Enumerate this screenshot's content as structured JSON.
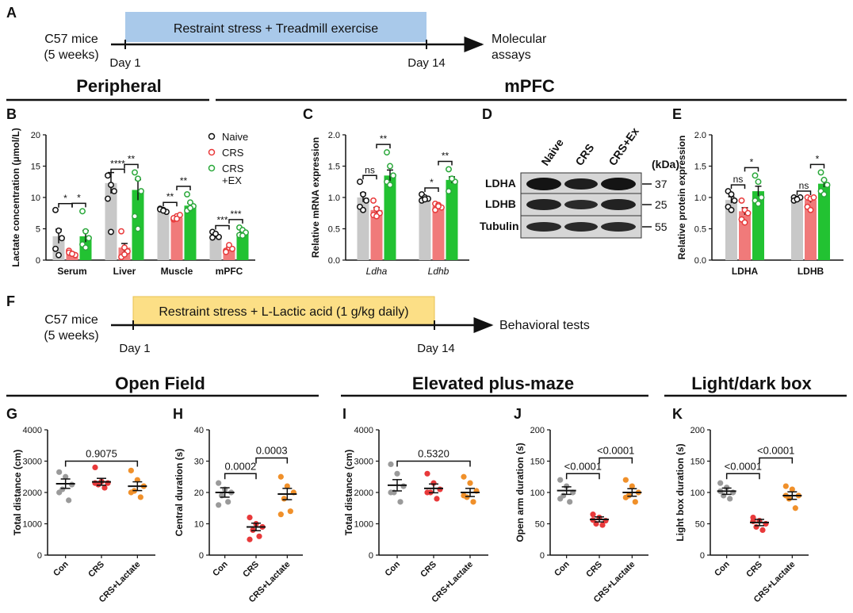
{
  "colors": {
    "grey": "#c8c8c8",
    "grey_pt": "#9a9a9a",
    "red": "#f07a7a",
    "red_pt": "#e8393a",
    "green": "#22c232",
    "green_pt": "#2aa83a",
    "orange": "#f0902a",
    "black": "#111111",
    "timeline_blue": "#a9c9ea",
    "timeline_yellow": "#fcdf86"
  },
  "panel_labels": {
    "A": "A",
    "B": "B",
    "C": "C",
    "D": "D",
    "E": "E",
    "F": "F",
    "G": "G",
    "H": "H",
    "I": "I",
    "J": "J",
    "K": "K"
  },
  "timeline_a": {
    "subject1": "C57 mice",
    "subject2": "(5 weeks)",
    "box": "Restraint stress + Treadmill exercise",
    "start": "Day 1",
    "end": "Day 14",
    "result1": "Molecular",
    "result2": "assays"
  },
  "timeline_f": {
    "subject1": "C57 mice",
    "subject2": "(5 weeks)",
    "box": "Restraint stress + L-Lactic acid (1 g/kg daily)",
    "start": "Day 1",
    "end": "Day 14",
    "result": "Behavioral tests"
  },
  "section_titles": {
    "peripheral": "Peripheral",
    "mpfc": "mPFC",
    "open_field": "Open Field",
    "epm": "Elevated plus-maze",
    "ldb": "Light/dark box"
  },
  "legend": {
    "naive": "Naive",
    "crs": "CRS",
    "crsex1": "CRS",
    "crsex2": "+EX"
  },
  "western": {
    "header": [
      "Naive",
      "CRS",
      "CRS+Ex"
    ],
    "kda": "(kDa)",
    "rows": [
      {
        "name": "LDHA",
        "size": "37"
      },
      {
        "name": "LDHB",
        "size": "25"
      },
      {
        "name": "Tubulin",
        "size": "55"
      }
    ]
  },
  "chart_data": [
    {
      "id": "B",
      "type": "bar",
      "ylabel": "Lactate concentration (μmol/L)",
      "ylim": [
        0,
        20
      ],
      "yticks": [
        "0",
        "5",
        "10",
        "15",
        "20"
      ],
      "categories": [
        "Serum",
        "Liver",
        "Muscle",
        "mPFC"
      ],
      "series": [
        {
          "name": "Naive",
          "values": [
            3.8,
            12.3,
            8.0,
            4.0
          ],
          "points": [
            [
              8,
              4.7,
              3.5,
              1.8,
              0.8
            ],
            [
              13.5,
              12,
              11,
              9.8,
              4.5
            ],
            [
              8.2,
              8.0,
              7.7,
              8.1,
              7.9
            ],
            [
              4.5,
              4.1,
              3.7,
              3.6,
              4.2
            ]
          ]
        },
        {
          "name": "CRS",
          "values": [
            1.1,
            2.0,
            6.8,
            1.8
          ],
          "points": [
            [
              1.5,
              1.0,
              0.8,
              1.2,
              1.0
            ],
            [
              4.6,
              2.0,
              1.4,
              0.5,
              0.9
            ],
            [
              6.5,
              7.0,
              7.2,
              6.7,
              6.6
            ],
            [
              1.5,
              2.0,
              1.8,
              1.3,
              2.4
            ]
          ]
        },
        {
          "name": "CRS+EX",
          "values": [
            3.8,
            11.2,
            8.7,
            4.3
          ],
          "points": [
            [
              7.8,
              4.6,
              3.5,
              2.5,
              2.0
            ],
            [
              14,
              13,
              11,
              7,
              5
            ],
            [
              10.5,
              9.2,
              8.6,
              7.9,
              8.3
            ],
            [
              5.2,
              4.8,
              4.4,
              4.0,
              3.9
            ]
          ]
        }
      ],
      "significance": [
        {
          "label": "*",
          "group": 0,
          "from": 0,
          "to": 1
        },
        {
          "label": "*",
          "group": 0,
          "from": 1,
          "to": 2
        },
        {
          "label": "****",
          "group": 1,
          "from": 0,
          "to": 1
        },
        {
          "label": "**",
          "group": 1,
          "from": 1,
          "to": 2
        },
        {
          "label": "**",
          "group": 2,
          "from": 0,
          "to": 1
        },
        {
          "label": "**",
          "group": 2,
          "from": 1,
          "to": 2
        },
        {
          "label": "***",
          "group": 3,
          "from": 0,
          "to": 1
        },
        {
          "label": "***",
          "group": 3,
          "from": 1,
          "to": 2
        }
      ]
    },
    {
      "id": "C",
      "type": "bar",
      "ylabel": "Relative mRNA expression",
      "ylim": [
        0,
        2.0
      ],
      "yticks": [
        "0.0",
        "0.5",
        "1.0",
        "1.5",
        "2.0"
      ],
      "categories": [
        "Ldha",
        "Ldhb"
      ],
      "series": [
        {
          "name": "Naive",
          "values": [
            1.0,
            1.0
          ],
          "points": [
            [
              1.25,
              1.05,
              0.95,
              0.85,
              0.8
            ],
            [
              1.05,
              1.0,
              0.98,
              0.95,
              0.97
            ]
          ]
        },
        {
          "name": "CRS",
          "values": [
            0.8,
            0.86
          ],
          "points": [
            [
              0.95,
              0.82,
              0.75,
              0.72,
              0.7
            ],
            [
              0.9,
              0.88,
              0.84,
              0.8,
              0.86
            ]
          ]
        },
        {
          "name": "CRS+EX",
          "values": [
            1.35,
            1.28
          ],
          "points": [
            [
              1.72,
              1.5,
              1.35,
              1.25,
              1.2
            ],
            [
              1.45,
              1.3,
              1.25,
              1.1,
              1.3
            ]
          ]
        }
      ],
      "significance": [
        {
          "label": "ns",
          "group": 0,
          "from": 0,
          "to": 1
        },
        {
          "label": "**",
          "group": 0,
          "from": 1,
          "to": 2
        },
        {
          "label": "*",
          "group": 1,
          "from": 0,
          "to": 1
        },
        {
          "label": "**",
          "group": 1,
          "from": 1,
          "to": 2
        }
      ]
    },
    {
      "id": "E",
      "type": "bar",
      "ylabel": "Relative protein expression",
      "ylim": [
        0,
        2.0
      ],
      "yticks": [
        "0.0",
        "0.5",
        "1.0",
        "1.5",
        "2.0"
      ],
      "categories": [
        "LDHA",
        "LDHB"
      ],
      "series": [
        {
          "name": "Naive",
          "values": [
            0.96,
            0.98
          ],
          "points": [
            [
              1.1,
              1.05,
              0.95,
              0.85,
              0.8
            ],
            [
              1.0,
              0.98,
              1.0,
              0.95,
              0.97
            ]
          ]
        },
        {
          "name": "CRS",
          "values": [
            0.78,
            0.96
          ],
          "points": [
            [
              0.95,
              0.8,
              0.75,
              0.65,
              0.6
            ],
            [
              1.0,
              0.98,
              1.0,
              0.85,
              0.8
            ]
          ]
        },
        {
          "name": "CRS+EX",
          "values": [
            1.1,
            1.22
          ],
          "points": [
            [
              1.35,
              1.25,
              1.0,
              0.95,
              0.9
            ],
            [
              1.4,
              1.28,
              1.2,
              1.1,
              1.05
            ]
          ]
        }
      ],
      "significance": [
        {
          "label": "ns",
          "group": 0,
          "from": 0,
          "to": 1
        },
        {
          "label": "*",
          "group": 0,
          "from": 1,
          "to": 2
        },
        {
          "label": "ns",
          "group": 1,
          "from": 0,
          "to": 1
        },
        {
          "label": "*",
          "group": 1,
          "from": 1,
          "to": 2
        }
      ]
    },
    {
      "id": "G",
      "type": "scatter",
      "ylabel": "Total distance (cm)",
      "ylim": [
        0,
        4000
      ],
      "yticks": [
        "0",
        "1000",
        "2000",
        "3000",
        "4000"
      ],
      "categories": [
        "Con",
        "CRS",
        "CRS+Lactate"
      ],
      "means": [
        2280,
        2340,
        2200
      ],
      "sem": [
        150,
        110,
        140
      ],
      "points": [
        [
          2650,
          2500,
          2250,
          2100,
          1750,
          2000
        ],
        [
          2800,
          2350,
          2300,
          2250,
          2150,
          2300
        ],
        [
          2700,
          2400,
          2200,
          2050,
          1850,
          2000
        ]
      ],
      "significance": [
        {
          "label": "0.9075",
          "from": 0,
          "to": 2,
          "level": 3000
        }
      ]
    },
    {
      "id": "H",
      "type": "scatter",
      "ylabel": "Central duration (s)",
      "ylim": [
        0,
        40
      ],
      "yticks": [
        "0",
        "10",
        "20",
        "30",
        "40"
      ],
      "categories": [
        "Con",
        "CRS",
        "CRS+Lactate"
      ],
      "means": [
        20,
        9,
        19.5
      ],
      "sem": [
        1.5,
        1.2,
        1.8
      ],
      "points": [
        [
          23,
          21,
          20,
          19,
          17,
          16
        ],
        [
          12,
          10,
          9,
          8,
          6,
          5
        ],
        [
          25,
          22,
          20,
          18,
          14,
          13
        ]
      ],
      "significance": [
        {
          "label": "0.0002",
          "from": 0,
          "to": 1,
          "level": 26
        },
        {
          "label": "0.0003",
          "from": 1,
          "to": 2,
          "level": 31
        }
      ]
    },
    {
      "id": "I",
      "type": "scatter",
      "ylabel": "Total distance (cm)",
      "ylim": [
        0,
        4000
      ],
      "yticks": [
        "0",
        "1000",
        "2000",
        "3000",
        "4000"
      ],
      "categories": [
        "Con",
        "CRS",
        "CRS+Lactate"
      ],
      "means": [
        2230,
        2130,
        2000
      ],
      "sem": [
        180,
        140,
        130
      ],
      "points": [
        [
          2900,
          2600,
          2200,
          2000,
          1700,
          2000
        ],
        [
          2600,
          2300,
          2100,
          2000,
          1800,
          2000
        ],
        [
          2500,
          2300,
          2050,
          1850,
          1700,
          1900
        ]
      ],
      "significance": [
        {
          "label": "0.5320",
          "from": 0,
          "to": 2,
          "level": 3000
        }
      ]
    },
    {
      "id": "J",
      "type": "scatter",
      "ylabel": "Open arm duration (s)",
      "ylim": [
        0,
        200
      ],
      "yticks": [
        "0",
        "50",
        "100",
        "150",
        "200"
      ],
      "categories": [
        "Con",
        "CRS",
        "CRS+Lactate"
      ],
      "means": [
        103,
        57,
        100
      ],
      "sem": [
        6,
        4,
        6
      ],
      "points": [
        [
          120,
          110,
          100,
          95,
          85,
          90
        ],
        [
          65,
          60,
          55,
          50,
          48,
          56
        ],
        [
          120,
          110,
          100,
          95,
          85,
          92
        ]
      ],
      "significance": [
        {
          "label": "<0.0001",
          "from": 0,
          "to": 1,
          "level": 130
        },
        {
          "label": "<0.0001",
          "from": 1,
          "to": 2,
          "level": 155
        }
      ]
    },
    {
      "id": "K",
      "type": "scatter",
      "ylabel": "Light box duration (s)",
      "ylim": [
        0,
        200
      ],
      "yticks": [
        "0",
        "50",
        "100",
        "150",
        "200"
      ],
      "categories": [
        "Con",
        "CRS",
        "CRS+Lactate"
      ],
      "means": [
        102,
        52,
        95
      ],
      "sem": [
        5,
        5,
        6
      ],
      "points": [
        [
          115,
          108,
          100,
          95,
          90,
          102
        ],
        [
          60,
          55,
          50,
          45,
          40,
          54
        ],
        [
          110,
          105,
          95,
          90,
          75,
          95
        ]
      ],
      "significance": [
        {
          "label": "<0.0001",
          "from": 0,
          "to": 1,
          "level": 130
        },
        {
          "label": "<0.0001",
          "from": 1,
          "to": 2,
          "level": 155
        }
      ]
    }
  ]
}
